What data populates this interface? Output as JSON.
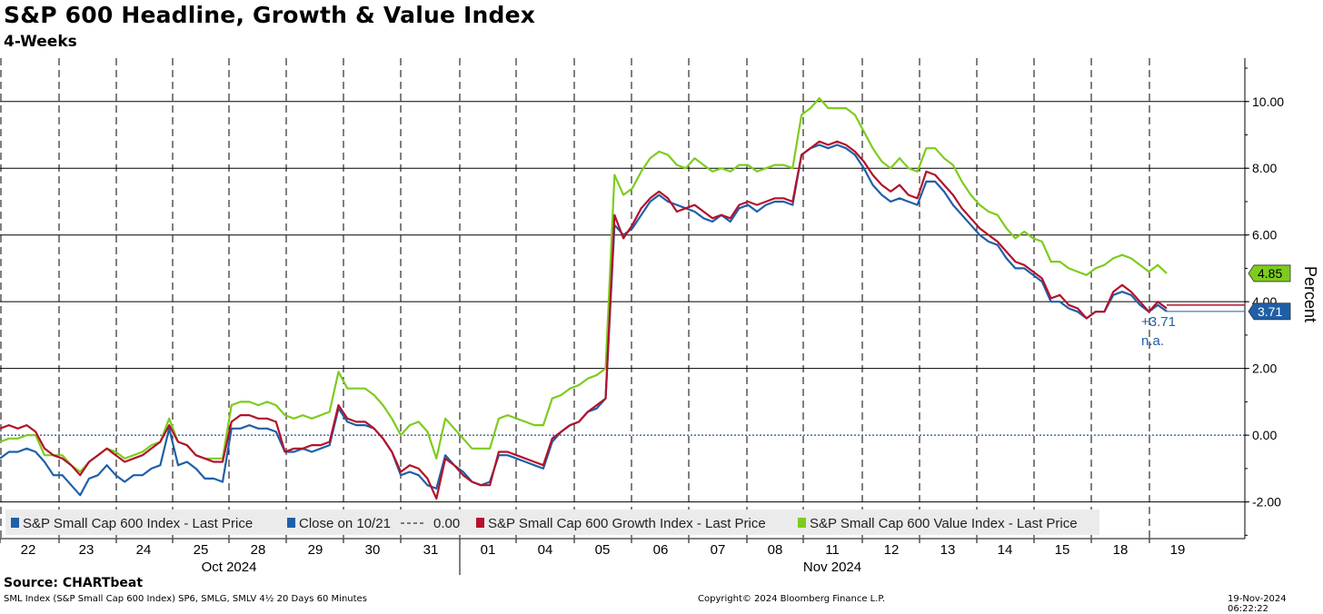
{
  "header": {
    "title": "S&P 600 Headline, Growth & Value Index",
    "subtitle": "4-Weeks"
  },
  "footer": {
    "source": "Source: CHARTbeat",
    "left_note": "SML Index (S&P Small Cap 600 Index) SP6, SMLG, SMLV 4½ 20 Days 60 Minutes",
    "copyright": "Copyright© 2024 Bloomberg Finance L.P.",
    "timestamp": "19-Nov-2024 06:22:22"
  },
  "colors": {
    "headline": "#1f5fa8",
    "growth": "#b3122b",
    "value": "#7dcc1d",
    "zero_line": "#2a4d8a",
    "grid": "#000000"
  },
  "chart_data": {
    "type": "line",
    "ylabel": "Percent",
    "ylim": [
      -3.1,
      11.3
    ],
    "yticks": [
      -2.0,
      0.0,
      2.0,
      4.0,
      6.0,
      8.0,
      10.0
    ],
    "ytick_labels": [
      "-2.00",
      "0.00",
      "2.00",
      "4.00",
      "6.00",
      "8.00",
      "10.00"
    ],
    "x_day_labels": [
      "22",
      "23",
      "24",
      "25",
      "28",
      "29",
      "30",
      "31",
      "01",
      "04",
      "05",
      "06",
      "07",
      "08",
      "11",
      "12",
      "13",
      "14",
      "15",
      "18",
      "19"
    ],
    "month_labels": [
      "Oct 2024",
      "Nov 2024"
    ],
    "grid": "dashed vertical per day, solid horizontal",
    "legend": [
      {
        "label": "S&P Small Cap 600 Index - Last Price",
        "color": "#1f5fa8"
      },
      {
        "label": "Close on 10/21",
        "color": "#1f5fa8"
      },
      {
        "label": "0.00",
        "color": "#555555",
        "dashed": true
      },
      {
        "label": "S&P Small Cap 600 Growth Index - Last Price",
        "color": "#b3122b"
      },
      {
        "label": "S&P Small Cap 600 Value Index - Last Price",
        "color": "#7dcc1d"
      }
    ],
    "last_value_tags": [
      {
        "label": "4.85",
        "series": "S&P Small Cap 600 Value Index - Last Price",
        "color": "#7dcc1d"
      },
      {
        "label": "3.71",
        "series": "S&P Small Cap 600 Index - Last Price",
        "color": "#1f5fa8"
      }
    ],
    "annotations": [
      "+3.71",
      "n.a."
    ],
    "series": [
      {
        "name": "S&P Small Cap 600 Index - Last Price",
        "values": [
          -0.7,
          -0.5,
          -0.5,
          -0.4,
          -0.5,
          -0.8,
          -1.2,
          -1.2,
          -1.5,
          -1.8,
          -1.3,
          -1.2,
          -0.9,
          -1.2,
          -1.4,
          -1.2,
          -1.2,
          -1.0,
          -0.9,
          0.2,
          -0.9,
          -0.8,
          -1.0,
          -1.3,
          -1.3,
          -1.4,
          0.2,
          0.2,
          0.3,
          0.2,
          0.2,
          0.1,
          -0.5,
          -0.5,
          -0.4,
          -0.5,
          -0.4,
          -0.3,
          0.8,
          0.4,
          0.3,
          0.3,
          0.2,
          -0.1,
          -0.5,
          -1.2,
          -1.1,
          -1.2,
          -1.5,
          -1.6,
          -0.6,
          -0.9,
          -1.1,
          -1.4,
          -1.5,
          -1.4,
          -0.6,
          -0.6,
          -0.7,
          -0.8,
          -0.9,
          -1.0,
          -0.2,
          0.1,
          0.3,
          0.4,
          0.7,
          0.8,
          1.1,
          6.3,
          6.0,
          6.2,
          6.6,
          7.0,
          7.2,
          7.0,
          6.9,
          6.8,
          6.7,
          6.5,
          6.4,
          6.6,
          6.4,
          6.8,
          6.9,
          6.7,
          6.9,
          7.0,
          7.0,
          6.9,
          8.4,
          8.6,
          8.7,
          8.6,
          8.7,
          8.6,
          8.4,
          8.0,
          7.5,
          7.2,
          7.0,
          7.1,
          7.0,
          6.9,
          7.6,
          7.6,
          7.3,
          6.9,
          6.6,
          6.3,
          6.0,
          5.8,
          5.7,
          5.3,
          5.0,
          5.0,
          4.8,
          4.6,
          4.0,
          4.0,
          3.8,
          3.7,
          3.5,
          3.7,
          3.7,
          4.2,
          4.3,
          4.2,
          3.9,
          3.7,
          3.9,
          3.71
        ]
      },
      {
        "name": "S&P Small Cap 600 Growth Index - Last Price",
        "values": [
          0.2,
          0.3,
          0.2,
          0.3,
          0.1,
          -0.4,
          -0.6,
          -0.7,
          -0.9,
          -1.2,
          -0.8,
          -0.6,
          -0.4,
          -0.6,
          -0.8,
          -0.7,
          -0.6,
          -0.4,
          -0.2,
          0.3,
          -0.2,
          -0.3,
          -0.6,
          -0.7,
          -0.8,
          -0.8,
          0.4,
          0.6,
          0.6,
          0.5,
          0.5,
          0.4,
          -0.5,
          -0.4,
          -0.4,
          -0.3,
          -0.3,
          -0.2,
          0.9,
          0.5,
          0.4,
          0.4,
          0.2,
          -0.1,
          -0.5,
          -1.1,
          -0.9,
          -1.0,
          -1.3,
          -1.9,
          -0.7,
          -0.9,
          -1.2,
          -1.4,
          -1.5,
          -1.5,
          -0.5,
          -0.5,
          -0.6,
          -0.7,
          -0.8,
          -0.9,
          -0.1,
          0.1,
          0.3,
          0.4,
          0.7,
          0.9,
          1.1,
          6.6,
          5.9,
          6.3,
          6.8,
          7.1,
          7.3,
          7.1,
          6.7,
          6.8,
          6.9,
          6.7,
          6.5,
          6.6,
          6.5,
          6.9,
          7.0,
          6.9,
          7.0,
          7.1,
          7.1,
          7.0,
          8.4,
          8.6,
          8.8,
          8.7,
          8.8,
          8.7,
          8.5,
          8.2,
          7.8,
          7.5,
          7.3,
          7.5,
          7.2,
          7.1,
          7.9,
          7.8,
          7.5,
          7.2,
          6.8,
          6.5,
          6.2,
          6.0,
          5.8,
          5.5,
          5.2,
          5.1,
          4.9,
          4.7,
          4.1,
          4.2,
          3.9,
          3.8,
          3.5,
          3.7,
          3.7,
          4.3,
          4.5,
          4.3,
          4.0,
          3.7,
          4.0,
          3.8
        ]
      },
      {
        "name": "S&P Small Cap 600 Value Index - Last Price",
        "values": [
          -0.2,
          -0.1,
          -0.1,
          0.0,
          0.0,
          -0.6,
          -0.6,
          -0.6,
          -0.9,
          -1.1,
          -0.8,
          -0.6,
          -0.4,
          -0.5,
          -0.7,
          -0.6,
          -0.5,
          -0.3,
          -0.2,
          0.5,
          -0.2,
          -0.3,
          -0.6,
          -0.7,
          -0.7,
          -0.7,
          0.9,
          1.0,
          1.0,
          0.9,
          1.0,
          0.9,
          0.6,
          0.5,
          0.6,
          0.5,
          0.6,
          0.7,
          1.9,
          1.4,
          1.4,
          1.4,
          1.2,
          0.9,
          0.5,
          0.0,
          0.3,
          0.4,
          0.1,
          -0.7,
          0.5,
          0.2,
          -0.1,
          -0.4,
          -0.4,
          -0.4,
          0.5,
          0.6,
          0.5,
          0.4,
          0.3,
          0.3,
          1.1,
          1.2,
          1.4,
          1.5,
          1.7,
          1.8,
          2.0,
          7.8,
          7.2,
          7.4,
          7.9,
          8.3,
          8.5,
          8.4,
          8.1,
          8.0,
          8.3,
          8.1,
          7.9,
          8.0,
          7.9,
          8.1,
          8.1,
          7.9,
          8.0,
          8.1,
          8.1,
          8.0,
          9.6,
          9.8,
          10.1,
          9.8,
          9.8,
          9.8,
          9.6,
          9.1,
          8.6,
          8.2,
          8.0,
          8.3,
          8.0,
          7.9,
          8.6,
          8.6,
          8.3,
          8.1,
          7.6,
          7.2,
          6.9,
          6.7,
          6.6,
          6.2,
          5.9,
          6.1,
          5.9,
          5.8,
          5.2,
          5.2,
          5.0,
          4.9,
          4.8,
          5.0,
          5.1,
          5.3,
          5.4,
          5.3,
          5.1,
          4.9,
          5.1,
          4.85
        ]
      }
    ]
  }
}
